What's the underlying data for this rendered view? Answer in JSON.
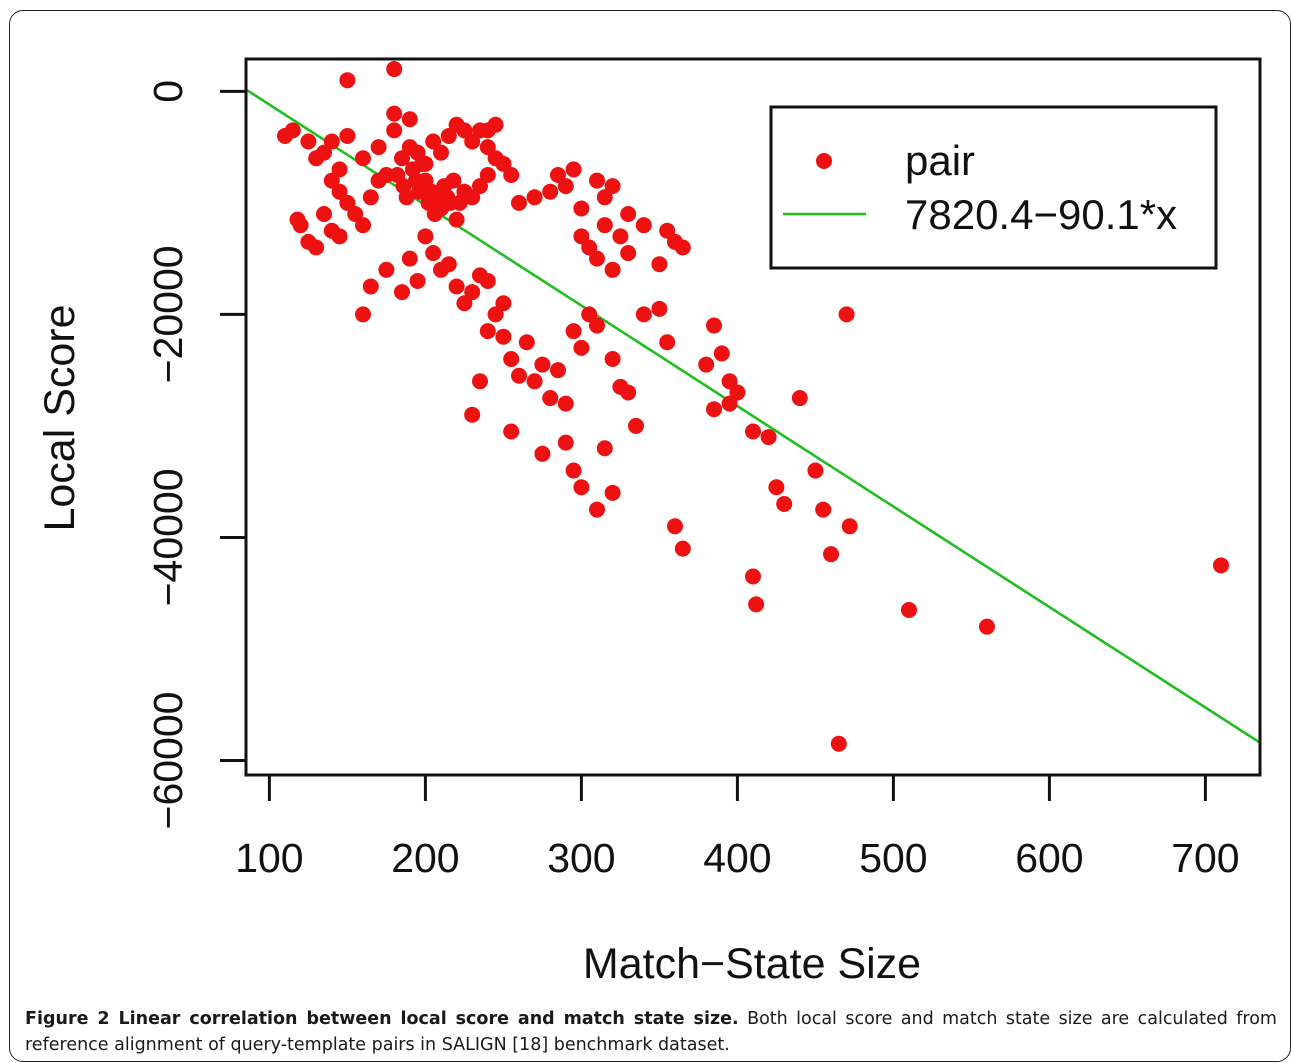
{
  "chart_data": {
    "type": "scatter",
    "xlabel": "Match−State Size",
    "ylabel": "Local Score",
    "xlim": [
      85,
      735
    ],
    "ylim": [
      -61300,
      2900
    ],
    "x_ticks": [
      100,
      200,
      300,
      400,
      500,
      600,
      700
    ],
    "x_tick_labels": [
      "100",
      "200",
      "300",
      "400",
      "500",
      "600",
      "700"
    ],
    "y_ticks": [
      0,
      -20000,
      -40000,
      -60000
    ],
    "y_tick_labels": [
      "0",
      "−20000",
      "−40000",
      "−60000"
    ],
    "grid": false,
    "legend_position": "top-right",
    "colors": {
      "points": "#ee1111",
      "fit_line": "#1fbf1f",
      "axes": "#111111"
    },
    "series": [
      {
        "name": "pair",
        "kind": "points",
        "points": [
          [
            180,
            2000
          ],
          [
            150,
            1000
          ],
          [
            180,
            -2000
          ],
          [
            190,
            -2500
          ],
          [
            180,
            -3500
          ],
          [
            240,
            -3500
          ],
          [
            245,
            -3000
          ],
          [
            115,
            -3500
          ],
          [
            125,
            -4500
          ],
          [
            110,
            -4000
          ],
          [
            130,
            -6000
          ],
          [
            135,
            -5500
          ],
          [
            140,
            -4500
          ],
          [
            150,
            -4000
          ],
          [
            145,
            -7000
          ],
          [
            160,
            -6000
          ],
          [
            170,
            -5000
          ],
          [
            175,
            -7500
          ],
          [
            185,
            -6000
          ],
          [
            190,
            -5000
          ],
          [
            195,
            -5500
          ],
          [
            200,
            -6500
          ],
          [
            205,
            -4500
          ],
          [
            210,
            -5500
          ],
          [
            215,
            -4000
          ],
          [
            220,
            -3000
          ],
          [
            225,
            -3500
          ],
          [
            230,
            -4500
          ],
          [
            235,
            -3500
          ],
          [
            240,
            -5000
          ],
          [
            182,
            -7500
          ],
          [
            186,
            -8500
          ],
          [
            188,
            -9500
          ],
          [
            192,
            -7000
          ],
          [
            194,
            -8000
          ],
          [
            196,
            -9000
          ],
          [
            198,
            -6500
          ],
          [
            200,
            -8000
          ],
          [
            202,
            -10000
          ],
          [
            204,
            -9000
          ],
          [
            206,
            -11000
          ],
          [
            208,
            -9500
          ],
          [
            210,
            -10500
          ],
          [
            212,
            -8500
          ],
          [
            214,
            -9500
          ],
          [
            216,
            -10000
          ],
          [
            218,
            -8000
          ],
          [
            220,
            -11500
          ],
          [
            222,
            -10000
          ],
          [
            225,
            -9000
          ],
          [
            230,
            -9500
          ],
          [
            235,
            -8500
          ],
          [
            240,
            -7500
          ],
          [
            245,
            -6000
          ],
          [
            250,
            -6500
          ],
          [
            255,
            -7500
          ],
          [
            140,
            -8000
          ],
          [
            145,
            -9000
          ],
          [
            150,
            -10000
          ],
          [
            155,
            -11000
          ],
          [
            160,
            -12000
          ],
          [
            165,
            -9500
          ],
          [
            170,
            -8000
          ],
          [
            135,
            -11000
          ],
          [
            140,
            -12500
          ],
          [
            145,
            -13000
          ],
          [
            130,
            -14000
          ],
          [
            125,
            -13500
          ],
          [
            120,
            -12000
          ],
          [
            118,
            -11500
          ],
          [
            260,
            -10000
          ],
          [
            270,
            -9500
          ],
          [
            280,
            -9000
          ],
          [
            290,
            -8500
          ],
          [
            285,
            -7500
          ],
          [
            295,
            -7000
          ],
          [
            300,
            -10500
          ],
          [
            310,
            -8000
          ],
          [
            320,
            -8500
          ],
          [
            315,
            -9500
          ],
          [
            330,
            -11000
          ],
          [
            340,
            -12000
          ],
          [
            355,
            -12500
          ],
          [
            360,
            -13500
          ],
          [
            350,
            -15500
          ],
          [
            365,
            -14000
          ],
          [
            300,
            -13000
          ],
          [
            305,
            -14000
          ],
          [
            310,
            -15000
          ],
          [
            315,
            -12000
          ],
          [
            320,
            -16000
          ],
          [
            325,
            -13000
          ],
          [
            330,
            -14500
          ],
          [
            200,
            -13000
          ],
          [
            205,
            -14500
          ],
          [
            210,
            -16000
          ],
          [
            215,
            -15500
          ],
          [
            220,
            -17500
          ],
          [
            225,
            -19000
          ],
          [
            230,
            -18000
          ],
          [
            235,
            -16500
          ],
          [
            240,
            -17000
          ],
          [
            245,
            -20000
          ],
          [
            250,
            -19000
          ],
          [
            195,
            -17000
          ],
          [
            190,
            -15000
          ],
          [
            185,
            -18000
          ],
          [
            175,
            -16000
          ],
          [
            165,
            -17500
          ],
          [
            160,
            -20000
          ],
          [
            240,
            -21500
          ],
          [
            250,
            -22000
          ],
          [
            255,
            -24000
          ],
          [
            260,
            -25500
          ],
          [
            265,
            -22500
          ],
          [
            270,
            -26000
          ],
          [
            275,
            -24500
          ],
          [
            280,
            -27500
          ],
          [
            285,
            -25000
          ],
          [
            290,
            -28000
          ],
          [
            295,
            -21500
          ],
          [
            300,
            -23000
          ],
          [
            305,
            -20000
          ],
          [
            310,
            -21000
          ],
          [
            320,
            -24000
          ],
          [
            325,
            -26500
          ],
          [
            330,
            -27000
          ],
          [
            340,
            -20000
          ],
          [
            350,
            -19500
          ],
          [
            355,
            -22500
          ],
          [
            230,
            -29000
          ],
          [
            235,
            -26000
          ],
          [
            255,
            -30500
          ],
          [
            275,
            -32500
          ],
          [
            290,
            -31500
          ],
          [
            295,
            -34000
          ],
          [
            300,
            -35500
          ],
          [
            310,
            -37500
          ],
          [
            315,
            -32000
          ],
          [
            320,
            -36000
          ],
          [
            335,
            -30000
          ],
          [
            360,
            -39000
          ],
          [
            365,
            -41000
          ],
          [
            385,
            -21000
          ],
          [
            390,
            -23500
          ],
          [
            395,
            -26000
          ],
          [
            400,
            -27000
          ],
          [
            380,
            -24500
          ],
          [
            385,
            -28500
          ],
          [
            395,
            -28000
          ],
          [
            410,
            -30500
          ],
          [
            420,
            -31000
          ],
          [
            425,
            -35500
          ],
          [
            430,
            -37000
          ],
          [
            440,
            -27500
          ],
          [
            450,
            -34000
          ],
          [
            455,
            -37500
          ],
          [
            460,
            -41500
          ],
          [
            470,
            -20000
          ],
          [
            472,
            -39000
          ],
          [
            410,
            -43500
          ],
          [
            412,
            -46000
          ],
          [
            465,
            -58500
          ],
          [
            510,
            -46500
          ],
          [
            560,
            -48000
          ],
          [
            710,
            -42500
          ]
        ]
      },
      {
        "name": "7820.4−90.1*x",
        "kind": "line",
        "intercept": 7820.4,
        "slope": -90.1,
        "x": [
          85,
          735
        ]
      }
    ]
  },
  "caption": {
    "label": "Figure 2 Linear correlation between local score and match state size.",
    "text": " Both local score and match state size are calculated from reference alignment of query-template pairs in SALIGN [18] benchmark dataset."
  }
}
